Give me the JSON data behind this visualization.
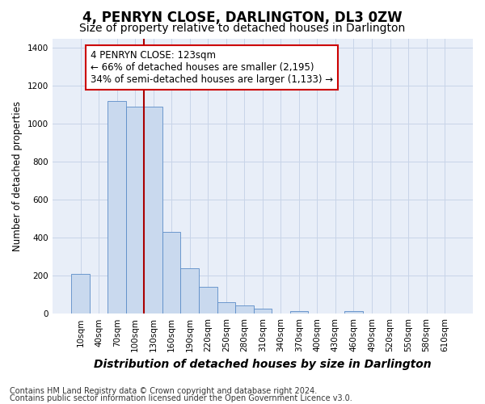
{
  "title": "4, PENRYN CLOSE, DARLINGTON, DL3 0ZW",
  "subtitle": "Size of property relative to detached houses in Darlington",
  "xlabel": "Distribution of detached houses by size in Darlington",
  "ylabel": "Number of detached properties",
  "categories": [
    "10sqm",
    "40sqm",
    "70sqm",
    "100sqm",
    "130sqm",
    "160sqm",
    "190sqm",
    "220sqm",
    "250sqm",
    "280sqm",
    "310sqm",
    "340sqm",
    "370sqm",
    "400sqm",
    "430sqm",
    "460sqm",
    "490sqm",
    "520sqm",
    "550sqm",
    "580sqm",
    "610sqm"
  ],
  "values": [
    210,
    0,
    1120,
    1090,
    1090,
    430,
    240,
    140,
    60,
    45,
    25,
    0,
    15,
    0,
    0,
    15,
    0,
    0,
    0,
    0,
    0
  ],
  "bar_color": "#c9d9ee",
  "bar_edge_color": "#5b8cc8",
  "vline_color": "#aa0000",
  "vline_pos": 3.5,
  "annotation_text": "4 PENRYN CLOSE: 123sqm\n← 66% of detached houses are smaller (2,195)\n34% of semi-detached houses are larger (1,133) →",
  "annotation_box_facecolor": "#ffffff",
  "annotation_box_edgecolor": "#cc0000",
  "ylim": [
    0,
    1450
  ],
  "yticks": [
    0,
    200,
    400,
    600,
    800,
    1000,
    1200,
    1400
  ],
  "grid_color": "#c8d4e8",
  "bg_color": "#e8eef8",
  "footer_line1": "Contains HM Land Registry data © Crown copyright and database right 2024.",
  "footer_line2": "Contains public sector information licensed under the Open Government Licence v3.0.",
  "title_fontsize": 12,
  "subtitle_fontsize": 10,
  "xlabel_fontsize": 10,
  "ylabel_fontsize": 8.5,
  "tick_fontsize": 7.5,
  "annotation_fontsize": 8.5,
  "footer_fontsize": 7
}
